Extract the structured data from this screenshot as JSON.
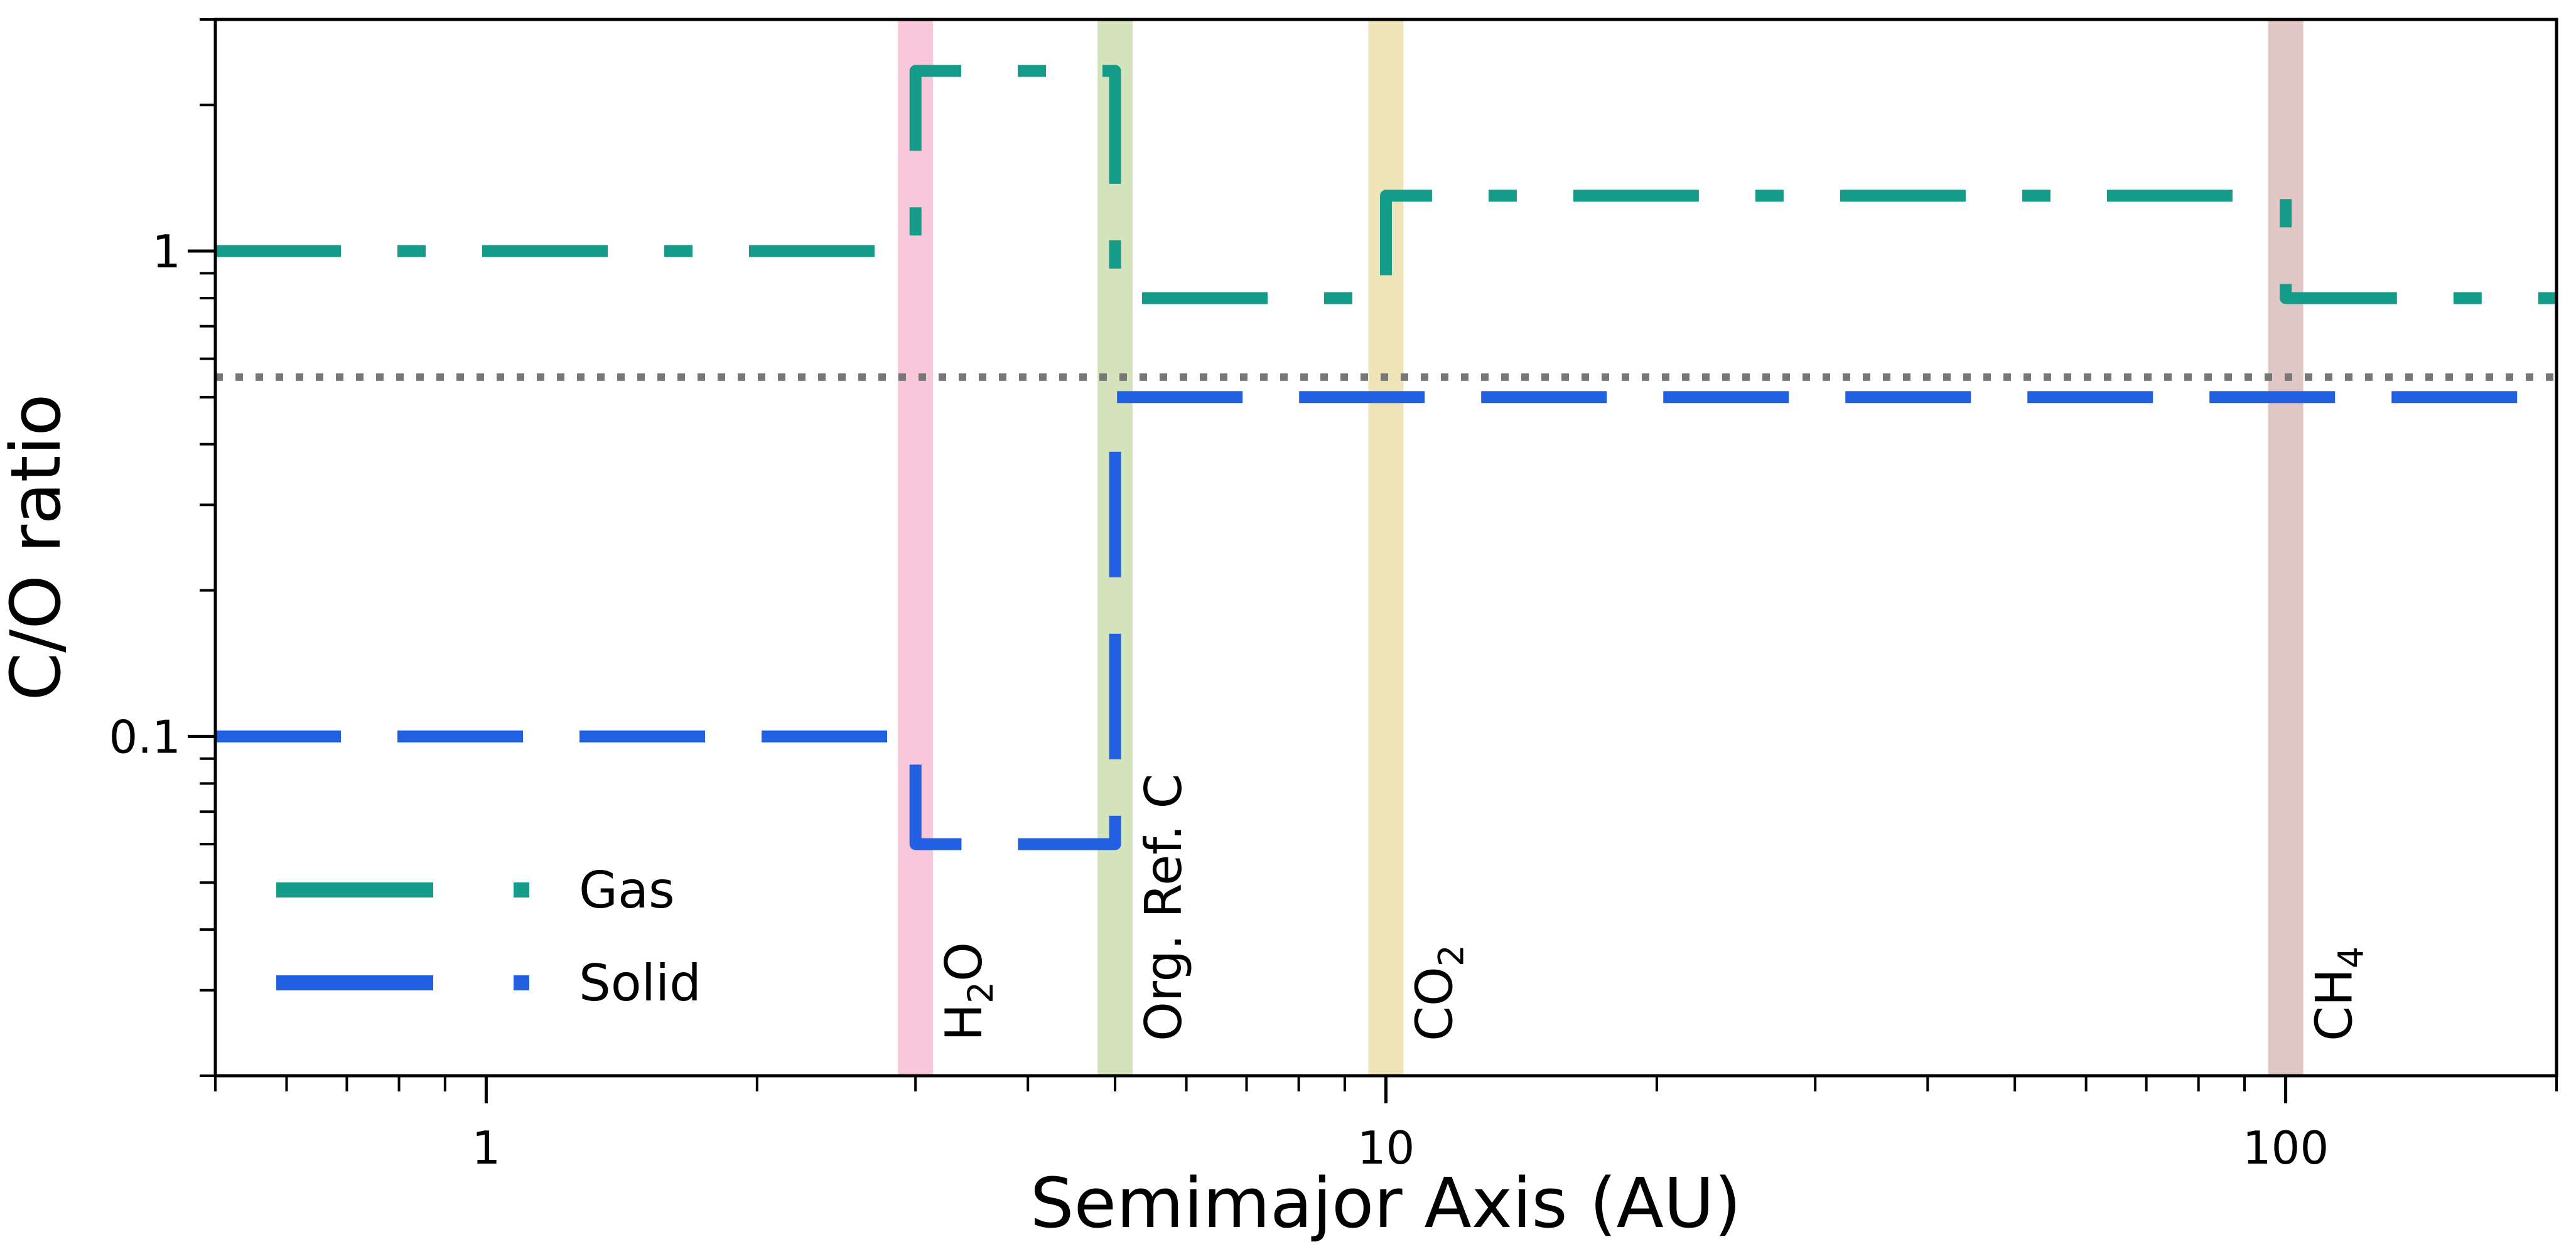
{
  "chart_data": {
    "type": "line",
    "xlabel": "Semimajor Axis (AU)",
    "ylabel": "C/O ratio",
    "xscale": "log",
    "yscale": "log",
    "xlim": [
      0.5,
      200
    ],
    "ylim": [
      0.02,
      3
    ],
    "grid": false,
    "legend_placement": "lower-left",
    "x_tick_labels": [
      {
        "value": 1,
        "label": "1"
      },
      {
        "value": 10,
        "label": "10"
      },
      {
        "value": 100,
        "label": "100"
      }
    ],
    "y_tick_labels": [
      {
        "value": 0.1,
        "label": "0.1"
      },
      {
        "value": 1,
        "label": "1"
      }
    ],
    "series": [
      {
        "name": "Gas",
        "color": "#159b8a",
        "style": "dash-dot",
        "x": [
          0.5,
          3,
          3,
          5,
          5,
          10,
          10,
          100,
          100,
          200
        ],
        "y": [
          1,
          1,
          2.35,
          2.35,
          0.8,
          0.8,
          1.3,
          1.3,
          0.8,
          0.8
        ]
      },
      {
        "name": "Solid",
        "color": "#2160e0",
        "style": "dashed",
        "x": [
          0.5,
          3,
          3,
          5,
          5,
          200
        ],
        "y": [
          0.1,
          0.1,
          0.06,
          0.06,
          0.5,
          0.5
        ]
      }
    ],
    "reference_line": {
      "y": 0.55,
      "color": "#777777",
      "style": "dotted"
    },
    "ice_lines": [
      {
        "x": 3,
        "label_main": "H",
        "label_sub": "2",
        "label_tail": "O",
        "color": "#f8c8da"
      },
      {
        "x": 5,
        "label_main": "Org. Ref. C",
        "label_sub": "",
        "label_tail": "",
        "color": "#d5e3bc"
      },
      {
        "x": 10,
        "label_main": "CO",
        "label_sub": "2",
        "label_tail": "",
        "color": "#eee4b8"
      },
      {
        "x": 100,
        "label_main": "CH",
        "label_sub": "4",
        "label_tail": "",
        "color": "#e1c6c6"
      }
    ]
  }
}
